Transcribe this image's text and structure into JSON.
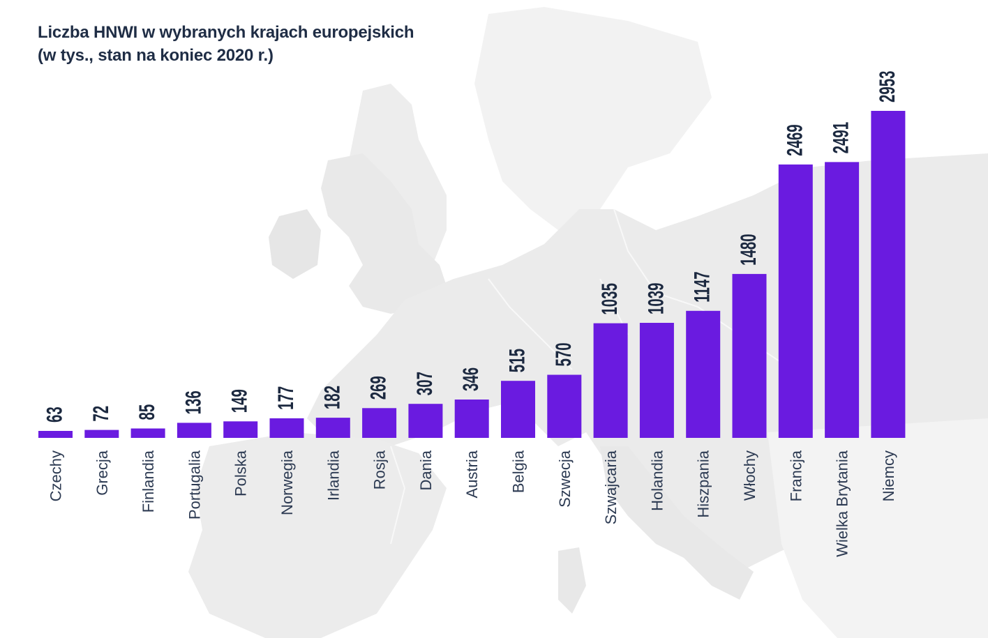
{
  "chart_data": {
    "type": "bar",
    "title": "Liczba HNWI w wybranych krajach europejskich",
    "subtitle": "(w tys., stan na koniec 2020 r.)",
    "xlabel": "",
    "ylabel": "",
    "ylim": [
      0,
      2953
    ],
    "grid": false,
    "legend": "none",
    "categories": [
      "Czechy",
      "Grecja",
      "Finlandia",
      "Portugalia",
      "Polska",
      "Norwegia",
      "Irlandia",
      "Rosja",
      "Dania",
      "Austria",
      "Belgia",
      "Szwecja",
      "Szwajcaria",
      "Holandia",
      "Hiszpania",
      "Włochy",
      "Francja",
      "Wielka Brytania",
      "Niemcy"
    ],
    "values": [
      63,
      72,
      85,
      136,
      149,
      177,
      182,
      269,
      307,
      346,
      515,
      570,
      1035,
      1039,
      1147,
      1480,
      2469,
      2491,
      2953
    ],
    "value_labels": [
      "63",
      "72",
      "85",
      "136",
      "149",
      "177",
      "182",
      "269",
      "307",
      "346",
      "515",
      "570",
      "1035",
      "1039",
      "1147",
      "1480",
      "2469",
      "2491",
      "2953"
    ],
    "bar_color": "#6a1be0",
    "label_color": "#1c2940",
    "background_map_color": "#ececec"
  }
}
